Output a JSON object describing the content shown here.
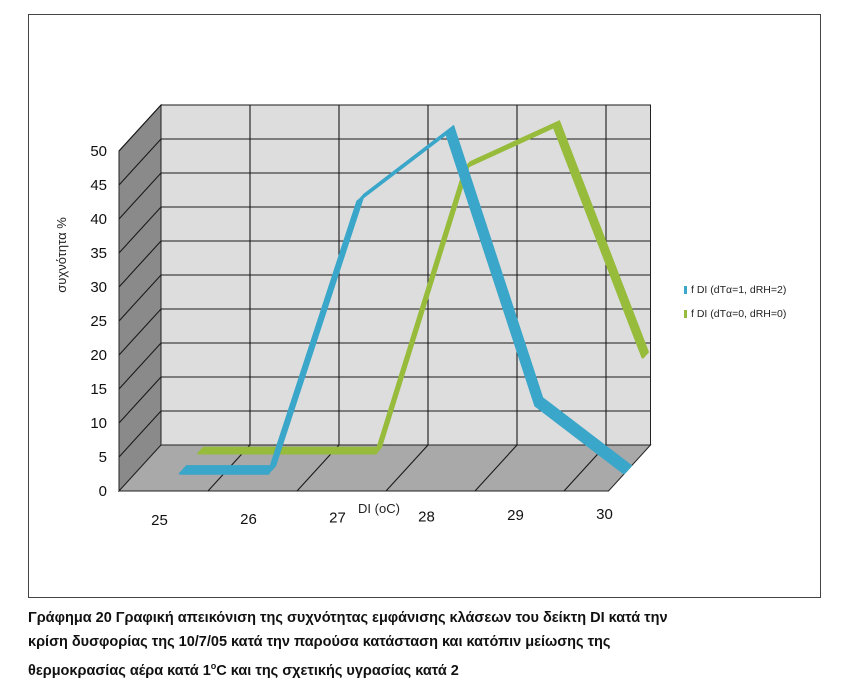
{
  "chart_data": {
    "type": "line",
    "style": "3d",
    "categories": [
      "25",
      "26",
      "27",
      "28",
      "29",
      "30"
    ],
    "xlabel": "DI (oC)",
    "ylabel": "συχνότητα %",
    "ylim": [
      0,
      50
    ],
    "yticks": [
      "0",
      "5",
      "10",
      "15",
      "20",
      "25",
      "30",
      "35",
      "40",
      "45",
      "50"
    ],
    "grid": true,
    "legend_position": "right",
    "series": [
      {
        "name": "f DI (dTα=1, dRH=2)",
        "color": "#3aa6c9",
        "values": [
          0,
          0,
          40,
          50,
          10,
          0
        ]
      },
      {
        "name": "f DI (dTα=0, dRH=0)",
        "color": "#97bb3a",
        "values": [
          0,
          0,
          0,
          42,
          48,
          14
        ]
      }
    ]
  },
  "caption": {
    "line1": "Γράφημα 20 Γραφική απεικόνιση της συχνότητας εμφάνισης κλάσεων του δείκτη DI κατά την",
    "line2": "κρίση δυσφορίας της 10/7/05 κατά την παρούσα κατάσταση και κατόπιν μείωσης της",
    "line3a": "θερμοκρασίας αέρα κατά 1",
    "line3sup": "o",
    "line3b": "C και της σχετικής υγρασίας κατά 2"
  }
}
